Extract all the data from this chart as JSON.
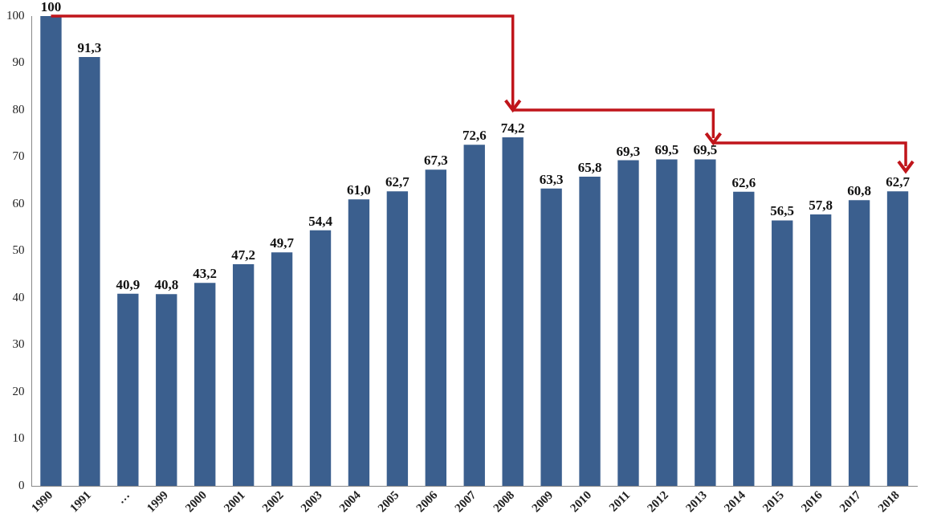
{
  "chart_data": {
    "type": "bar",
    "categories": [
      "1990",
      "1991",
      "…",
      "1999",
      "2000",
      "2001",
      "2002",
      "2003",
      "2004",
      "2005",
      "2006",
      "2007",
      "2008",
      "2009",
      "2010",
      "2011",
      "2012",
      "2013",
      "2014",
      "2015",
      "2016",
      "2017",
      "2018"
    ],
    "values": [
      100,
      91.3,
      40.9,
      40.8,
      43.2,
      47.2,
      49.7,
      54.4,
      61.0,
      62.7,
      67.3,
      72.6,
      74.2,
      63.3,
      65.8,
      69.3,
      69.5,
      69.5,
      62.6,
      56.5,
      57.8,
      60.8,
      62.7
    ],
    "value_labels": [
      "100",
      "91,3",
      "40,9",
      "40,8",
      "43,2",
      "47,2",
      "49,7",
      "54,4",
      "61,0",
      "62,7",
      "67,3",
      "72,6",
      "74,2",
      "63,3",
      "65,8",
      "69,3",
      "69,5",
      "69,5",
      "62,6",
      "56,5",
      "57,8",
      "60,8",
      "62,7"
    ],
    "color": "#3b5f8e",
    "ylim": [
      0,
      100
    ],
    "yticks": [
      0,
      10,
      20,
      30,
      40,
      50,
      60,
      70,
      80,
      90,
      100
    ],
    "grid": false
  }
}
